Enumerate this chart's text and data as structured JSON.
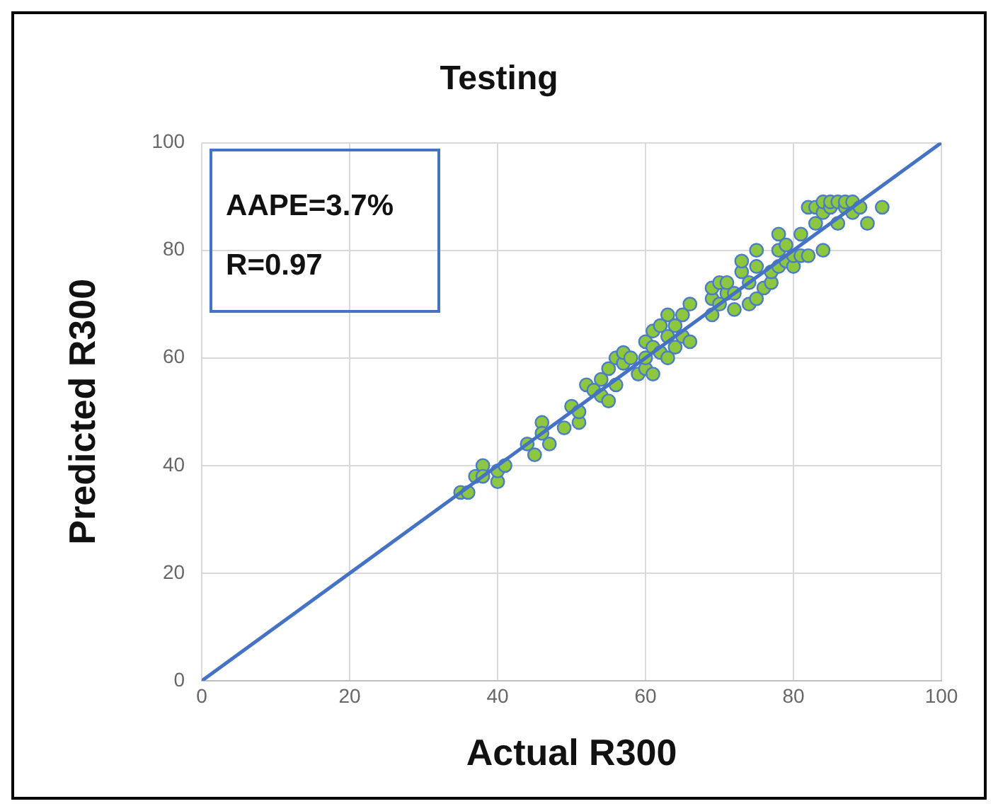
{
  "chart_data": {
    "type": "scatter",
    "title": "Testing",
    "xlabel": "Actual R300",
    "ylabel": "Predicted R300",
    "annotations": [
      "AAPE=3.7%",
      "R=0.97"
    ],
    "xlim": [
      0,
      100
    ],
    "xticks": [
      0,
      20,
      40,
      60,
      80,
      100
    ],
    "ylim": [
      0,
      100
    ],
    "yticks": [
      0,
      20,
      40,
      60,
      80,
      100
    ],
    "grid": true,
    "legend": false,
    "marker": "circle",
    "series": [
      {
        "type": "scatter",
        "color": "#8dc63f",
        "x": [
          35,
          36,
          37,
          38,
          38,
          40,
          40,
          41,
          44,
          45,
          46,
          46,
          47,
          49,
          50,
          51,
          51,
          52,
          53,
          54,
          54,
          55,
          55,
          56,
          56,
          57,
          57,
          58,
          59,
          60,
          60,
          60,
          61,
          61,
          61,
          62,
          62,
          63,
          63,
          63,
          64,
          64,
          65,
          65,
          66,
          66,
          69,
          69,
          69,
          70,
          70,
          71,
          71,
          72,
          72,
          73,
          73,
          74,
          74,
          75,
          75,
          75,
          76,
          77,
          77,
          78,
          78,
          78,
          79,
          79,
          80,
          80,
          81,
          81,
          82,
          82,
          83,
          83,
          84,
          84,
          84,
          85,
          85,
          86,
          86,
          87,
          87,
          88,
          88,
          89,
          90,
          92
        ],
        "values": [
          35,
          35,
          38,
          40,
          38,
          37,
          39,
          40,
          44,
          42,
          48,
          46,
          44,
          47,
          51,
          48,
          50,
          55,
          54,
          53,
          56,
          52,
          58,
          55,
          60,
          59,
          61,
          60,
          57,
          58,
          60,
          63,
          57,
          62,
          65,
          61,
          66,
          60,
          64,
          68,
          62,
          66,
          64,
          68,
          63,
          70,
          68,
          71,
          73,
          70,
          74,
          72,
          74,
          69,
          72,
          76,
          78,
          70,
          74,
          71,
          77,
          80,
          73,
          74,
          76,
          77,
          80,
          83,
          78,
          81,
          77,
          79,
          79,
          83,
          79,
          88,
          85,
          88,
          80,
          87,
          89,
          88,
          89,
          85,
          89,
          88,
          89,
          87,
          89,
          88,
          85,
          88
        ]
      },
      {
        "type": "line",
        "color": "#4472c4",
        "x": [
          0,
          100
        ],
        "values": [
          0,
          100
        ],
        "marker": "none",
        "line_style": "solid"
      }
    ]
  }
}
